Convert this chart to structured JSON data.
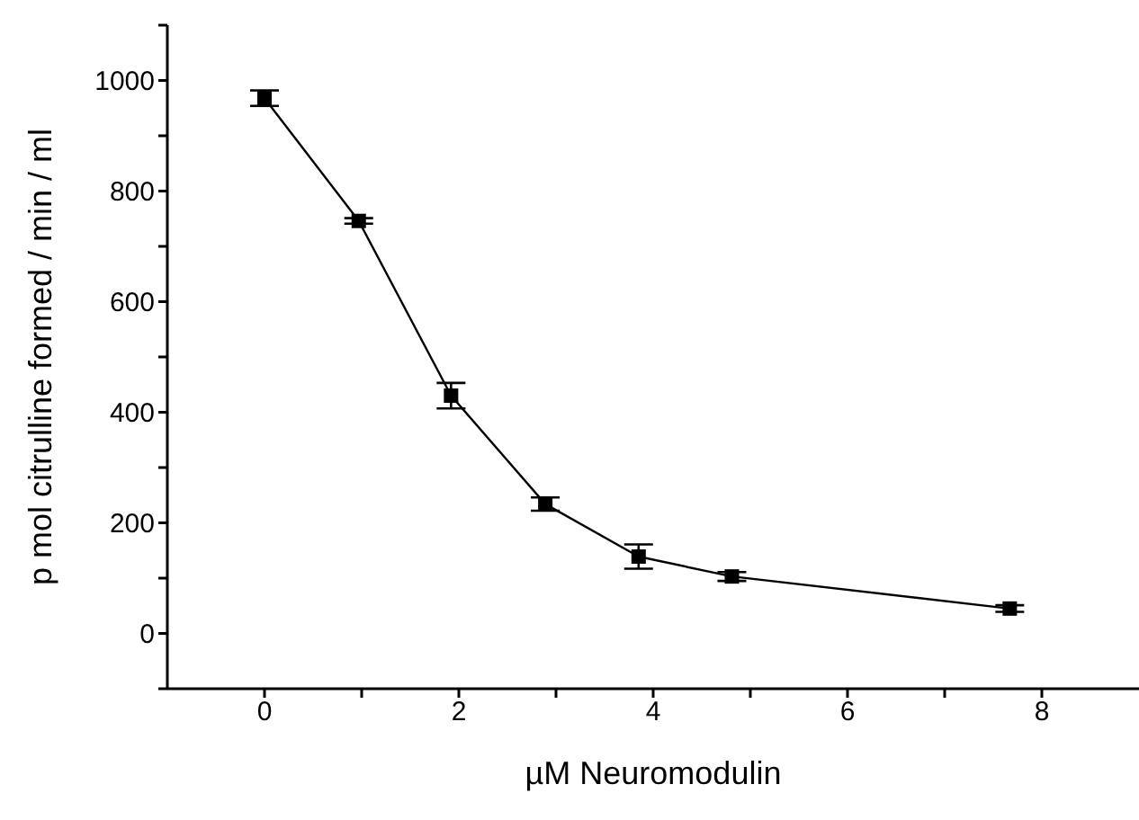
{
  "chart_data": {
    "type": "line",
    "xlabel": "µM Neuromodulin",
    "ylabel": "p mol citrulline formed / min / ml",
    "x": [
      0,
      0.97,
      1.92,
      2.89,
      3.85,
      4.81,
      7.67
    ],
    "series": [
      {
        "color": "#000000",
        "values": [
          968,
          746,
          430,
          234,
          139,
          103,
          45
        ],
        "errors": [
          14,
          5,
          23,
          12,
          22,
          8,
          6
        ]
      }
    ],
    "xlim": [
      -1,
      9
    ],
    "xticks": [
      0,
      {
        "value": 1,
        "label": null
      },
      2,
      {
        "value": 3,
        "label": null
      },
      4,
      {
        "value": 5,
        "label": null
      },
      6,
      {
        "value": 7,
        "label": null
      },
      8
    ],
    "ylim": [
      -100,
      1100
    ],
    "yticks": [
      {
        "value": -100,
        "label": null
      },
      0,
      {
        "value": 100,
        "label": null
      },
      200,
      {
        "value": 300,
        "label": null
      },
      400,
      {
        "value": 500,
        "label": null
      },
      600,
      {
        "value": 700,
        "label": null
      },
      800,
      {
        "value": 900,
        "label": null
      },
      1000,
      {
        "value": 1100,
        "label": null
      }
    ],
    "grid": false,
    "legend": false,
    "marker": "square",
    "line_style": "solid"
  }
}
